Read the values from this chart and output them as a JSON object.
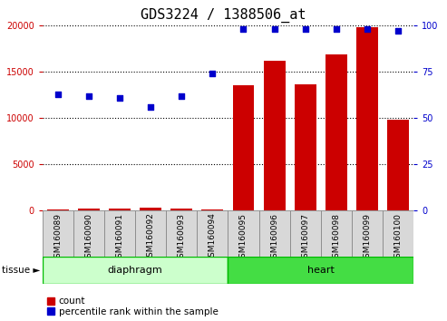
{
  "title": "GDS3224 / 1388506_at",
  "samples": [
    "GSM160089",
    "GSM160090",
    "GSM160091",
    "GSM160092",
    "GSM160093",
    "GSM160094",
    "GSM160095",
    "GSM160096",
    "GSM160097",
    "GSM160098",
    "GSM160099",
    "GSM160100"
  ],
  "counts": [
    50,
    150,
    200,
    300,
    200,
    50,
    13500,
    16200,
    13600,
    16900,
    19800,
    9800
  ],
  "percentile": [
    63,
    62,
    61,
    56,
    62,
    74,
    98,
    98,
    98,
    98,
    98,
    97
  ],
  "groups": [
    {
      "label": "diaphragm",
      "start": 0,
      "end": 5,
      "color": "#ccffcc",
      "border": "#00bb00"
    },
    {
      "label": "heart",
      "start": 6,
      "end": 11,
      "color": "#44dd44",
      "border": "#00bb00"
    }
  ],
  "group_label": "tissue",
  "ylim_left": [
    0,
    20000
  ],
  "ylim_right": [
    0,
    100
  ],
  "yticks_left": [
    0,
    5000,
    10000,
    15000,
    20000
  ],
  "yticks_right": [
    0,
    25,
    50,
    75,
    100
  ],
  "bar_color": "#cc0000",
  "dot_color": "#0000cc",
  "left_tick_color": "#cc0000",
  "right_tick_color": "#0000cc",
  "title_fontsize": 11,
  "legend_fontsize": 7.5,
  "tick_label_fontsize": 7,
  "sample_fontsize": 6.5,
  "group_fontsize": 8
}
